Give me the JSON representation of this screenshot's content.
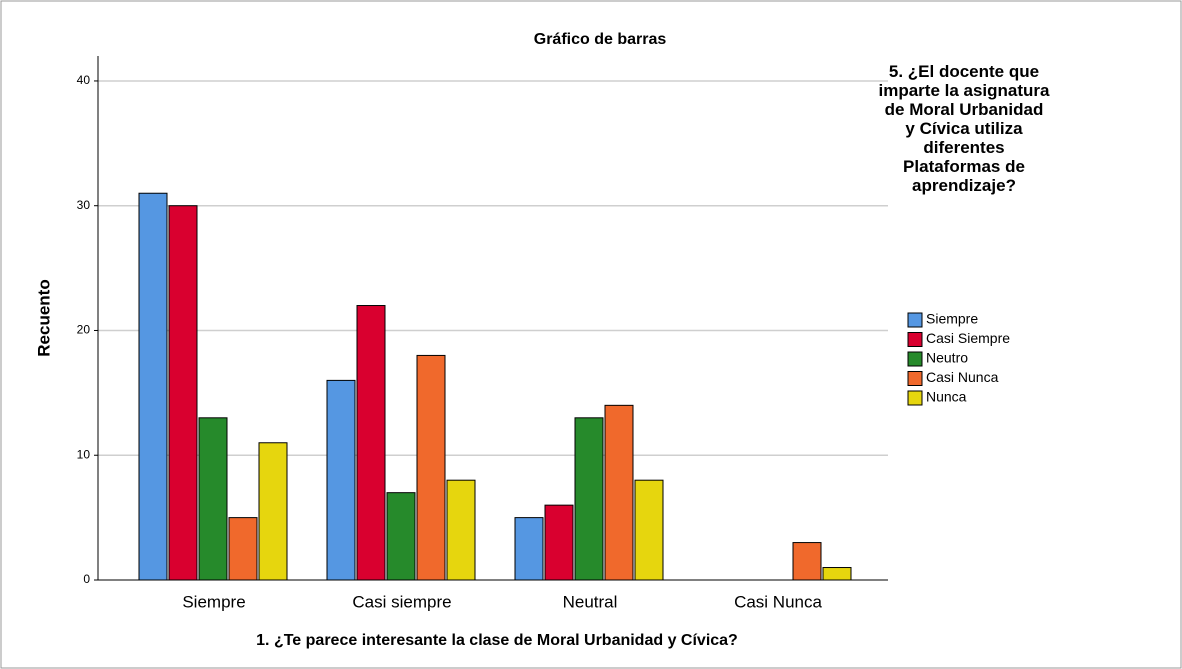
{
  "chart_data": {
    "type": "bar",
    "title": "Gráfico de barras",
    "x_label": "1. ¿Te parece interesante la clase de Moral Urbanidad y Cívica?",
    "y_label": "Recuento",
    "legend_title": "5. ¿El docente que imparte la asignatura de Moral Urbanidad y Cívica utiliza diferentes Plataformas de aprendizaje?",
    "categories": [
      "Siempre",
      "Casi siempre",
      "Neutral",
      "Casi Nunca"
    ],
    "series": [
      {
        "name": "Siempre",
        "color": "#5597e2",
        "values": [
          31,
          16,
          5,
          null
        ]
      },
      {
        "name": "Casi Siempre",
        "color": "#d9002f",
        "values": [
          30,
          22,
          6,
          null
        ]
      },
      {
        "name": "Neutro",
        "color": "#268a2b",
        "values": [
          13,
          7,
          13,
          null
        ]
      },
      {
        "name": "Casi Nunca",
        "color": "#f0692c",
        "values": [
          5,
          18,
          14,
          3
        ]
      },
      {
        "name": "Nunca",
        "color": "#e6d60e",
        "values": [
          11,
          8,
          8,
          1
        ]
      }
    ],
    "ylim": [
      0,
      42
    ],
    "yticks": [
      0,
      10,
      20,
      30,
      40
    ],
    "grid": true,
    "legend": "right"
  }
}
